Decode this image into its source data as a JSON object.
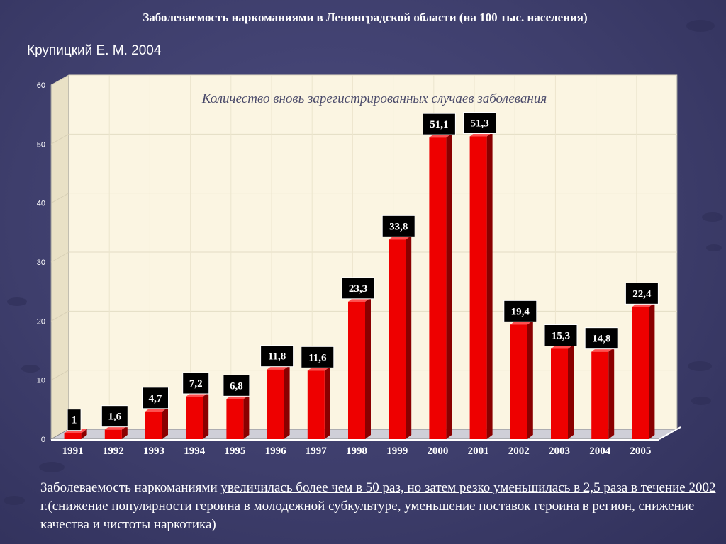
{
  "title": "Заболеваемость наркоманиями в Ленинградской области (на 100 тыс. населения)",
  "author": "Крупицкий Е. М. 2004",
  "caption": {
    "part1": "Заболеваемость наркоманиями ",
    "part2_underlined": "увеличилась  более чем в 50 раз,  но затем резко уменьшилась в 2,5 раза в течение 2002 г.",
    "part3": "(снижение популярности героина  в молодежной субкультуре, уменьшение поставок  героина в регион, снижение качества и чистоты  наркотика)"
  },
  "colors": {
    "bar_front": "#ee0000",
    "bar_side": "#8a0000",
    "bar_top": "#ff5050",
    "plot_back": "#fbf5e2",
    "label_box": "#000000"
  },
  "chart_data": {
    "type": "bar",
    "title": "Количество вновь зарегистрированных случаев заболевания",
    "categories": [
      "1991",
      "1992",
      "1993",
      "1994",
      "1995",
      "1996",
      "1997",
      "1998",
      "1999",
      "2000",
      "2001",
      "2002",
      "2003",
      "2004",
      "2005"
    ],
    "values": [
      1,
      1.6,
      4.7,
      7.2,
      6.8,
      11.8,
      11.6,
      23.3,
      33.8,
      51.1,
      51.3,
      19.4,
      15.3,
      14.8,
      22.4
    ],
    "value_labels": [
      "1",
      "1,6",
      "4,7",
      "7,2",
      "6,8",
      "11,8",
      "11,6",
      "23,3",
      "33,8",
      "51,1",
      "51,3",
      "19,4",
      "15,3",
      "14,8",
      "22,4"
    ],
    "y_ticks": [
      "0",
      "10",
      "20",
      "30",
      "40",
      "50",
      "60"
    ],
    "ylim": [
      0,
      60
    ],
    "grid": true,
    "legend": "none",
    "style": "3d"
  }
}
